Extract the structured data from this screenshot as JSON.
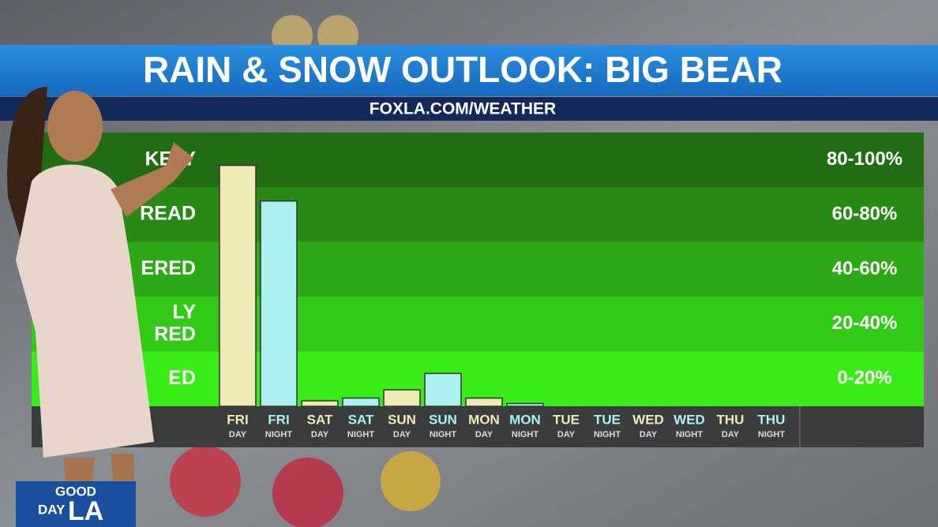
{
  "chart_data": {
    "type": "bar",
    "title": "RAIN & SNOW OUTLOOK: BIG BEAR",
    "subtitle": "FOXLA.COM/WEATHER",
    "categories": [
      "FRI",
      "FRI",
      "SAT",
      "SAT",
      "SUN",
      "SUN",
      "MON",
      "MON",
      "TUE",
      "TUE",
      "WED",
      "WED",
      "THU",
      "THU"
    ],
    "category_sublabels": [
      "DAY",
      "NIGHT",
      "DAY",
      "NIGHT",
      "DAY",
      "NIGHT",
      "DAY",
      "NIGHT",
      "DAY",
      "NIGHT",
      "DAY",
      "NIGHT",
      "DAY",
      "NIGHT"
    ],
    "values": [
      88,
      75,
      2,
      3,
      6,
      12,
      3,
      1,
      0,
      0,
      0,
      0,
      0,
      0
    ],
    "colors": {
      "DAY": "#efeab4",
      "NIGHT": "#aaf1ef"
    },
    "ylim": [
      0,
      100
    ],
    "bands": [
      {
        "from": 80,
        "to": 100,
        "label": "80-100%",
        "name": [
          "KELY"
        ],
        "color": "#226c14"
      },
      {
        "from": 60,
        "to": 80,
        "label": "60-80%",
        "name": [
          "READ"
        ],
        "color": "#288a15"
      },
      {
        "from": 40,
        "to": 60,
        "label": "40-60%",
        "name": [
          "ERED"
        ],
        "color": "#2da816"
      },
      {
        "from": 20,
        "to": 40,
        "label": "20-40%",
        "name": [
          "LY",
          "RED"
        ],
        "color": "#33ca17"
      },
      {
        "from": 0,
        "to": 20,
        "label": "0-20%",
        "name": [
          "ED"
        ],
        "color": "#38ec15"
      }
    ]
  },
  "logo": {
    "line1": "GOOD",
    "line2": "DAY",
    "line3": "LA"
  }
}
